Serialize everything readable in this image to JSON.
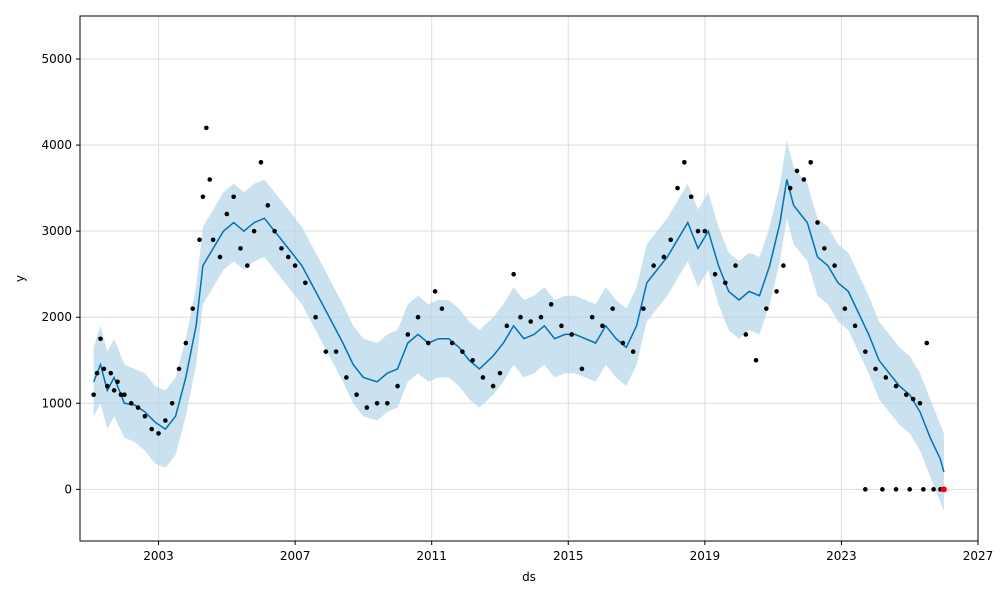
{
  "chart_data": {
    "type": "line",
    "title": "",
    "xlabel": "ds",
    "ylabel": "y",
    "xlim": [
      2000.7,
      2027.0
    ],
    "ylim": [
      -600,
      5500
    ],
    "grid": true,
    "x_ticks": [
      {
        "value": 2003,
        "label": "2003"
      },
      {
        "value": 2007,
        "label": "2007"
      },
      {
        "value": 2011,
        "label": "2011"
      },
      {
        "value": 2015,
        "label": "2015"
      },
      {
        "value": 2019,
        "label": "2019"
      },
      {
        "value": 2023,
        "label": "2023"
      },
      {
        "value": 2027,
        "label": "2027"
      }
    ],
    "y_ticks": [
      {
        "value": 0,
        "label": "0"
      },
      {
        "value": 1000,
        "label": "1000"
      },
      {
        "value": 2000,
        "label": "2000"
      },
      {
        "value": 3000,
        "label": "3000"
      },
      {
        "value": 4000,
        "label": "4000"
      },
      {
        "value": 5000,
        "label": "5000"
      }
    ],
    "colors": {
      "forecast": "#0072B2",
      "interval": "#B4D4E9",
      "observed": "#000000",
      "highlight": "#FF0000",
      "grid": "#DDDDDD"
    },
    "forecast": {
      "x": [
        2001.1,
        2001.3,
        2001.5,
        2001.7,
        2002.0,
        2002.3,
        2002.6,
        2002.9,
        2003.2,
        2003.5,
        2003.8,
        2004.1,
        2004.3,
        2004.6,
        2004.9,
        2005.2,
        2005.5,
        2005.8,
        2006.1,
        2006.4,
        2006.8,
        2007.2,
        2007.6,
        2008.0,
        2008.4,
        2008.7,
        2009.0,
        2009.4,
        2009.7,
        2010.0,
        2010.3,
        2010.6,
        2010.9,
        2011.2,
        2011.5,
        2011.8,
        2012.1,
        2012.4,
        2012.8,
        2013.1,
        2013.4,
        2013.7,
        2014.0,
        2014.3,
        2014.6,
        2014.9,
        2015.2,
        2015.5,
        2015.8,
        2016.1,
        2016.4,
        2016.7,
        2017.0,
        2017.3,
        2017.6,
        2017.9,
        2018.2,
        2018.5,
        2018.8,
        2019.1,
        2019.4,
        2019.7,
        2020.0,
        2020.3,
        2020.6,
        2020.9,
        2021.2,
        2021.4,
        2021.6,
        2021.8,
        2022.0,
        2022.3,
        2022.6,
        2022.9,
        2023.2,
        2023.5,
        2023.8,
        2024.1,
        2024.4,
        2024.7,
        2025.0,
        2025.3,
        2025.6,
        2025.9,
        2026.0
      ],
      "y": [
        1250,
        1450,
        1150,
        1300,
        1000,
        980,
        900,
        780,
        700,
        850,
        1300,
        1900,
        2600,
        2800,
        3000,
        3100,
        3000,
        3100,
        3150,
        3000,
        2800,
        2600,
        2300,
        2000,
        1700,
        1450,
        1300,
        1250,
        1350,
        1400,
        1700,
        1800,
        1700,
        1750,
        1750,
        1650,
        1500,
        1400,
        1550,
        1700,
        1900,
        1750,
        1800,
        1900,
        1750,
        1800,
        1800,
        1750,
        1700,
        1900,
        1750,
        1650,
        1900,
        2400,
        2550,
        2700,
        2900,
        3100,
        2800,
        3000,
        2600,
        2300,
        2200,
        2300,
        2250,
        2600,
        3100,
        3600,
        3300,
        3200,
        3100,
        2700,
        2600,
        2400,
        2300,
        2050,
        1800,
        1500,
        1350,
        1200,
        1100,
        900,
        600,
        350,
        200
      ],
      "lower": [
        850,
        1000,
        700,
        850,
        600,
        550,
        450,
        300,
        250,
        400,
        850,
        1450,
        2150,
        2350,
        2550,
        2650,
        2550,
        2650,
        2700,
        2550,
        2350,
        2150,
        1850,
        1550,
        1250,
        1000,
        850,
        800,
        900,
        950,
        1250,
        1350,
        1250,
        1300,
        1300,
        1200,
        1050,
        950,
        1100,
        1250,
        1450,
        1300,
        1350,
        1450,
        1300,
        1350,
        1350,
        1300,
        1250,
        1450,
        1300,
        1200,
        1450,
        1950,
        2100,
        2250,
        2450,
        2650,
        2350,
        2550,
        2150,
        1850,
        1750,
        1850,
        1800,
        2150,
        2650,
        3150,
        2850,
        2750,
        2650,
        2250,
        2150,
        1950,
        1850,
        1600,
        1350,
        1050,
        900,
        750,
        650,
        450,
        150,
        -150,
        -250
      ],
      "upper": [
        1650,
        1900,
        1600,
        1750,
        1450,
        1400,
        1350,
        1200,
        1150,
        1300,
        1750,
        2350,
        3050,
        3250,
        3450,
        3550,
        3450,
        3550,
        3600,
        3450,
        3250,
        3050,
        2750,
        2450,
        2150,
        1900,
        1750,
        1700,
        1800,
        1850,
        2150,
        2250,
        2150,
        2200,
        2200,
        2100,
        1950,
        1850,
        2000,
        2150,
        2350,
        2200,
        2250,
        2350,
        2200,
        2250,
        2250,
        2200,
        2150,
        2350,
        2200,
        2100,
        2350,
        2850,
        3000,
        3150,
        3350,
        3550,
        3250,
        3450,
        3050,
        2750,
        2650,
        2750,
        2700,
        3050,
        3550,
        4050,
        3750,
        3650,
        3550,
        3150,
        3050,
        2850,
        2750,
        2500,
        2250,
        1950,
        1800,
        1650,
        1550,
        1350,
        1050,
        750,
        650
      ]
    },
    "observed": {
      "x": [
        2001.1,
        2001.2,
        2001.3,
        2001.4,
        2001.5,
        2001.6,
        2001.7,
        2001.8,
        2001.9,
        2002.0,
        2002.2,
        2002.4,
        2002.6,
        2002.8,
        2003.0,
        2003.2,
        2003.4,
        2003.6,
        2003.8,
        2004.0,
        2004.2,
        2004.3,
        2004.4,
        2004.5,
        2004.6,
        2004.8,
        2005.0,
        2005.2,
        2005.4,
        2005.6,
        2005.8,
        2006.0,
        2006.2,
        2006.4,
        2006.6,
        2006.8,
        2007.0,
        2007.3,
        2007.6,
        2007.9,
        2008.2,
        2008.5,
        2008.8,
        2009.1,
        2009.4,
        2009.7,
        2010.0,
        2010.3,
        2010.6,
        2010.9,
        2011.1,
        2011.3,
        2011.6,
        2011.9,
        2012.2,
        2012.5,
        2012.8,
        2013.0,
        2013.2,
        2013.4,
        2013.6,
        2013.9,
        2014.2,
        2014.5,
        2014.8,
        2015.1,
        2015.4,
        2015.7,
        2016.0,
        2016.3,
        2016.6,
        2016.9,
        2017.2,
        2017.5,
        2017.8,
        2018.0,
        2018.2,
        2018.4,
        2018.6,
        2018.8,
        2019.0,
        2019.3,
        2019.6,
        2019.9,
        2020.2,
        2020.5,
        2020.8,
        2021.1,
        2021.3,
        2021.5,
        2021.7,
        2021.9,
        2022.1,
        2022.3,
        2022.5,
        2022.8,
        2023.1,
        2023.4,
        2023.7,
        2024.0,
        2024.3,
        2024.6,
        2024.9,
        2025.1,
        2025.3,
        2025.5,
        2023.7,
        2024.2,
        2024.6,
        2025.0,
        2025.4,
        2025.7,
        2025.9
      ],
      "y": [
        1100,
        1350,
        1750,
        1400,
        1200,
        1350,
        1150,
        1250,
        1100,
        1100,
        1000,
        950,
        850,
        700,
        650,
        800,
        1000,
        1400,
        1700,
        2100,
        2900,
        3400,
        4200,
        3600,
        2900,
        2700,
        3200,
        3400,
        2800,
        2600,
        3000,
        3800,
        3300,
        3000,
        2800,
        2700,
        2600,
        2400,
        2000,
        1600,
        1600,
        1300,
        1100,
        950,
        1000,
        1000,
        1200,
        1800,
        2000,
        1700,
        2300,
        2100,
        1700,
        1600,
        1500,
        1300,
        1200,
        1350,
        1900,
        2500,
        2000,
        1950,
        2000,
        2150,
        1900,
        1800,
        1400,
        2000,
        1900,
        2100,
        1700,
        1600,
        2100,
        2600,
        2700,
        2900,
        3500,
        3800,
        3400,
        3000,
        3000,
        2500,
        2400,
        2600,
        1800,
        1500,
        2100,
        2300,
        2600,
        3500,
        3700,
        3600,
        3800,
        3100,
        2800,
        2600,
        2100,
        1900,
        1600,
        1400,
        1300,
        1200,
        1100,
        1050,
        1000,
        1700,
        0,
        0,
        0,
        0,
        0,
        0,
        0
      ]
    },
    "highlight": {
      "x": [
        2026.0
      ],
      "y": [
        0
      ]
    }
  }
}
